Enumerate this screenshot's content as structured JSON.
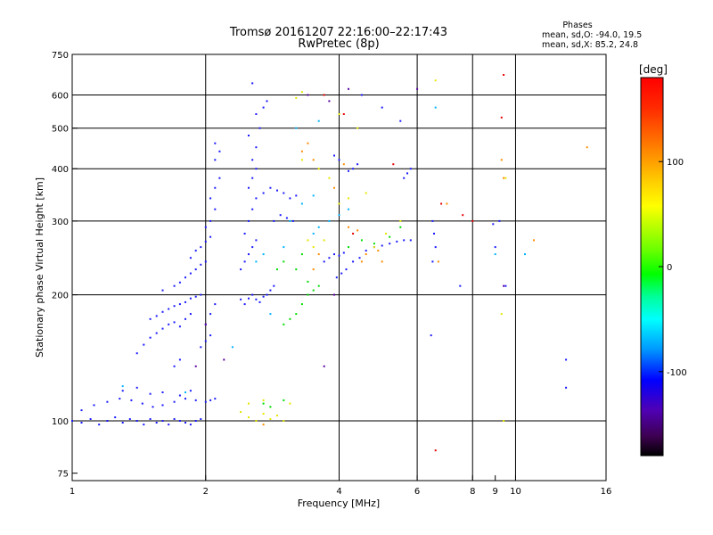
{
  "chart_data": {
    "type": "scatter",
    "title": "Tromsø 20161207 22:16:00–22:17:43",
    "subtitle": "RwPretec (8p)",
    "stats": {
      "heading": "Phases",
      "line1": "mean, sd,O: -94.0, 19.5",
      "line2": "mean, sd,X:  85.2, 24.8"
    },
    "xlabel": "Frequency [MHz]",
    "ylabel": "Stationary phase Virtual Height [km]",
    "x_scale": "log",
    "y_scale": "log",
    "xlim": [
      1,
      16
    ],
    "ylim": [
      72,
      750
    ],
    "x_ticks": [
      1,
      2,
      4,
      6,
      8,
      9,
      10,
      16
    ],
    "x_tick_labels": [
      "1",
      "2",
      "4",
      "6",
      "8",
      "9",
      "10",
      "16"
    ],
    "x_gridlines": [
      2,
      4,
      6,
      8,
      10
    ],
    "y_ticks": [
      75,
      100,
      200,
      300,
      400,
      500,
      600,
      750
    ],
    "y_tick_labels": [
      "75",
      "100",
      "200",
      "300",
      "400",
      "500",
      "600",
      "750"
    ],
    "y_gridlines": [
      100,
      200,
      300,
      400,
      500,
      600
    ],
    "colorbar": {
      "label": "[deg]",
      "range": [
        -180,
        180
      ],
      "ticks": [
        100,
        0,
        -100
      ],
      "tick_labels": [
        "100",
        "0",
        "-100"
      ]
    },
    "series": [
      {
        "color": "#1a1aff",
        "points": [
          [
            1.0,
            100
          ],
          [
            1.05,
            99
          ],
          [
            1.1,
            101
          ],
          [
            1.15,
            98
          ],
          [
            1.2,
            100
          ],
          [
            1.25,
            102
          ],
          [
            1.3,
            99
          ],
          [
            1.35,
            101
          ],
          [
            1.4,
            100
          ],
          [
            1.45,
            98
          ],
          [
            1.5,
            101
          ],
          [
            1.55,
            99
          ],
          [
            1.6,
            100
          ],
          [
            1.65,
            98
          ],
          [
            1.7,
            101
          ],
          [
            1.75,
            100
          ],
          [
            1.8,
            99
          ],
          [
            1.85,
            98
          ],
          [
            1.9,
            100
          ],
          [
            1.95,
            101
          ],
          [
            1.05,
            106
          ],
          [
            1.12,
            109
          ],
          [
            1.2,
            111
          ],
          [
            1.28,
            113
          ],
          [
            1.36,
            112
          ],
          [
            1.44,
            110
          ],
          [
            1.52,
            108
          ],
          [
            1.6,
            109
          ],
          [
            1.7,
            111
          ],
          [
            1.8,
            113
          ],
          [
            1.9,
            112
          ],
          [
            2.0,
            111
          ],
          [
            2.05,
            112
          ],
          [
            2.1,
            113
          ],
          [
            1.3,
            118
          ],
          [
            1.4,
            120
          ],
          [
            1.5,
            116
          ],
          [
            1.6,
            117
          ],
          [
            1.75,
            115
          ],
          [
            1.85,
            118
          ],
          [
            1.4,
            145
          ],
          [
            1.45,
            152
          ],
          [
            1.5,
            158
          ],
          [
            1.55,
            162
          ],
          [
            1.6,
            166
          ],
          [
            1.65,
            170
          ],
          [
            1.7,
            172
          ],
          [
            1.75,
            168
          ],
          [
            1.8,
            175
          ],
          [
            1.85,
            180
          ],
          [
            1.5,
            175
          ],
          [
            1.55,
            178
          ],
          [
            1.6,
            182
          ],
          [
            1.65,
            185
          ],
          [
            1.7,
            188
          ],
          [
            1.75,
            190
          ],
          [
            1.8,
            192
          ],
          [
            1.85,
            196
          ],
          [
            1.9,
            198
          ],
          [
            1.95,
            200
          ],
          [
            1.6,
            205
          ],
          [
            1.7,
            210
          ],
          [
            1.75,
            214
          ],
          [
            1.8,
            220
          ],
          [
            1.85,
            225
          ],
          [
            1.9,
            230
          ],
          [
            1.95,
            236
          ],
          [
            2.0,
            240
          ],
          [
            1.85,
            245
          ],
          [
            1.9,
            255
          ],
          [
            1.95,
            260
          ],
          [
            2.0,
            268
          ],
          [
            2.05,
            275
          ],
          [
            2.0,
            290
          ],
          [
            2.05,
            300
          ],
          [
            2.1,
            320
          ],
          [
            2.05,
            340
          ],
          [
            2.1,
            360
          ],
          [
            2.15,
            380
          ],
          [
            2.1,
            420
          ],
          [
            2.15,
            440
          ],
          [
            2.1,
            460
          ],
          [
            1.95,
            150
          ],
          [
            2.0,
            155
          ],
          [
            2.05,
            160
          ],
          [
            2.0,
            170
          ],
          [
            2.05,
            180
          ],
          [
            2.1,
            190
          ],
          [
            1.7,
            135
          ],
          [
            1.75,
            140
          ],
          [
            2.4,
            195
          ],
          [
            2.45,
            190
          ],
          [
            2.5,
            196
          ],
          [
            2.55,
            200
          ],
          [
            2.6,
            195
          ],
          [
            2.65,
            192
          ],
          [
            2.7,
            198
          ],
          [
            2.75,
            200
          ],
          [
            2.8,
            205
          ],
          [
            2.85,
            210
          ],
          [
            2.4,
            230
          ],
          [
            2.45,
            240
          ],
          [
            2.5,
            250
          ],
          [
            2.55,
            260
          ],
          [
            2.6,
            270
          ],
          [
            2.45,
            280
          ],
          [
            2.5,
            300
          ],
          [
            2.55,
            320
          ],
          [
            2.6,
            340
          ],
          [
            2.5,
            360
          ],
          [
            2.55,
            380
          ],
          [
            2.6,
            400
          ],
          [
            2.55,
            420
          ],
          [
            2.6,
            450
          ],
          [
            2.5,
            480
          ],
          [
            2.65,
            500
          ],
          [
            2.6,
            540
          ],
          [
            2.7,
            560
          ],
          [
            2.75,
            580
          ],
          [
            2.55,
            640
          ],
          [
            2.7,
            350
          ],
          [
            2.8,
            360
          ],
          [
            2.9,
            355
          ],
          [
            3.0,
            350
          ],
          [
            3.1,
            340
          ],
          [
            3.2,
            345
          ],
          [
            2.85,
            300
          ],
          [
            2.95,
            310
          ],
          [
            3.05,
            305
          ],
          [
            3.15,
            300
          ],
          [
            3.7,
            240
          ],
          [
            3.8,
            245
          ],
          [
            3.9,
            250
          ],
          [
            4.0,
            248
          ],
          [
            4.1,
            252
          ],
          [
            3.95,
            220
          ],
          [
            4.05,
            225
          ],
          [
            4.15,
            230
          ],
          [
            4.3,
            240
          ],
          [
            4.45,
            245
          ],
          [
            4.6,
            255
          ],
          [
            4.8,
            260
          ],
          [
            5.0,
            262
          ],
          [
            5.2,
            265
          ],
          [
            5.4,
            268
          ],
          [
            5.6,
            270
          ],
          [
            5.8,
            270
          ],
          [
            5.6,
            380
          ],
          [
            5.7,
            390
          ],
          [
            5.8,
            400
          ],
          [
            4.2,
            395
          ],
          [
            4.3,
            400
          ],
          [
            4.4,
            410
          ],
          [
            4.0,
            420
          ],
          [
            3.9,
            430
          ],
          [
            6.5,
            300
          ],
          [
            6.55,
            280
          ],
          [
            6.6,
            260
          ],
          [
            6.5,
            240
          ],
          [
            6.45,
            160
          ],
          [
            7.5,
            210
          ],
          [
            9.0,
            260
          ],
          [
            9.2,
            300
          ],
          [
            8.9,
            295
          ],
          [
            9.5,
            210
          ],
          [
            13.0,
            140
          ],
          [
            13.0,
            120
          ],
          [
            4.5,
            600
          ],
          [
            5.0,
            560
          ],
          [
            5.5,
            520
          ]
        ]
      },
      {
        "color": "#00b4ff",
        "points": [
          [
            1.3,
            121
          ],
          [
            1.8,
            117
          ],
          [
            2.3,
            150
          ],
          [
            2.6,
            240
          ],
          [
            2.7,
            250
          ],
          [
            3.0,
            260
          ],
          [
            3.5,
            280
          ],
          [
            3.6,
            290
          ],
          [
            3.8,
            300
          ],
          [
            4.0,
            310
          ],
          [
            4.2,
            320
          ],
          [
            3.3,
            330
          ],
          [
            3.5,
            345
          ],
          [
            3.2,
            500
          ],
          [
            3.6,
            520
          ],
          [
            6.6,
            560
          ],
          [
            9.0,
            250
          ],
          [
            10.5,
            250
          ],
          [
            2.8,
            180
          ],
          [
            3.1,
            300
          ]
        ]
      },
      {
        "color": "#00dc00",
        "points": [
          [
            3.0,
            170
          ],
          [
            3.1,
            175
          ],
          [
            3.2,
            180
          ],
          [
            3.3,
            190
          ],
          [
            3.4,
            200
          ],
          [
            3.5,
            205
          ],
          [
            3.6,
            210
          ],
          [
            3.4,
            215
          ],
          [
            3.2,
            230
          ],
          [
            2.9,
            230
          ],
          [
            3.0,
            240
          ],
          [
            3.3,
            250
          ],
          [
            4.2,
            260
          ],
          [
            4.5,
            270
          ],
          [
            4.8,
            265
          ],
          [
            5.2,
            275
          ],
          [
            5.5,
            290
          ],
          [
            2.7,
            110
          ],
          [
            2.8,
            108
          ],
          [
            3.0,
            112
          ]
        ]
      },
      {
        "color": "#e6e600",
        "points": [
          [
            2.4,
            105
          ],
          [
            2.5,
            102
          ],
          [
            2.6,
            100
          ],
          [
            2.7,
            104
          ],
          [
            2.8,
            101
          ],
          [
            2.9,
            103
          ],
          [
            3.0,
            100
          ],
          [
            2.5,
            110
          ],
          [
            2.7,
            112
          ],
          [
            3.1,
            110
          ],
          [
            3.5,
            260
          ],
          [
            3.7,
            270
          ],
          [
            4.0,
            330
          ],
          [
            4.2,
            340
          ],
          [
            4.6,
            350
          ],
          [
            4.8,
            260
          ],
          [
            5.1,
            280
          ],
          [
            5.5,
            300
          ],
          [
            3.4,
            270
          ],
          [
            3.8,
            380
          ],
          [
            3.6,
            400
          ],
          [
            3.3,
            420
          ],
          [
            4.0,
            540
          ],
          [
            4.4,
            500
          ],
          [
            6.6,
            650
          ],
          [
            9.4,
            100
          ],
          [
            9.3,
            180
          ],
          [
            9.5,
            380
          ],
          [
            3.2,
            590
          ],
          [
            3.3,
            610
          ]
        ]
      },
      {
        "color": "#ff8c00",
        "points": [
          [
            3.5,
            230
          ],
          [
            3.6,
            250
          ],
          [
            4.5,
            240
          ],
          [
            4.6,
            250
          ],
          [
            4.9,
            255
          ],
          [
            5.0,
            240
          ],
          [
            3.3,
            440
          ],
          [
            3.4,
            460
          ],
          [
            7.0,
            330
          ],
          [
            9.3,
            420
          ],
          [
            9.4,
            380
          ],
          [
            11.0,
            270
          ],
          [
            14.5,
            450
          ],
          [
            4.2,
            290
          ],
          [
            4.4,
            285
          ],
          [
            3.5,
            420
          ],
          [
            4.1,
            410
          ],
          [
            6.7,
            240
          ],
          [
            3.9,
            360
          ],
          [
            2.7,
            98
          ]
        ]
      },
      {
        "color": "#e60000",
        "points": [
          [
            6.6,
            85
          ],
          [
            9.4,
            670
          ],
          [
            9.3,
            530
          ],
          [
            7.6,
            310
          ],
          [
            3.7,
            600
          ],
          [
            4.1,
            540
          ],
          [
            5.3,
            410
          ],
          [
            8.0,
            300
          ],
          [
            6.8,
            330
          ],
          [
            4.3,
            280
          ]
        ]
      },
      {
        "color": "#5a00a0",
        "points": [
          [
            3.7,
            135
          ],
          [
            3.4,
            600
          ],
          [
            3.8,
            580
          ],
          [
            6.0,
            620
          ],
          [
            9.4,
            210
          ],
          [
            4.2,
            620
          ],
          [
            3.9,
            200
          ],
          [
            2.0,
            170
          ],
          [
            1.9,
            135
          ],
          [
            2.2,
            140
          ]
        ]
      }
    ]
  }
}
